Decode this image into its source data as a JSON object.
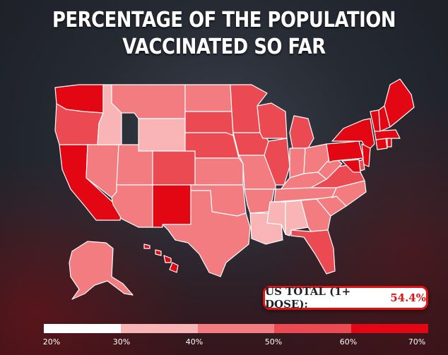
{
  "title": {
    "line1": "PERCENTAGE OF THE POPULATION",
    "line2": "VACCINATED SO FAR"
  },
  "total": {
    "label": "US TOTAL (1+ DOSE):",
    "value": "54.4%"
  },
  "legend": {
    "ticks": [
      "20%",
      "30%",
      "40%",
      "50%",
      "60%",
      "70%"
    ],
    "bins": [
      {
        "range": "20-30",
        "color": "#ffffff"
      },
      {
        "range": "30-40",
        "color": "#f9b4b6"
      },
      {
        "range": "40-50",
        "color": "#f27c80"
      },
      {
        "range": "50-60",
        "color": "#ec4a52"
      },
      {
        "range": "60-70",
        "color": "#e30613"
      }
    ]
  },
  "states": [
    {
      "id": "WA",
      "bin": 4
    },
    {
      "id": "OR",
      "bin": 3
    },
    {
      "id": "CA",
      "bin": 4
    },
    {
      "id": "NV",
      "bin": 2
    },
    {
      "id": "ID",
      "bin": 1
    },
    {
      "id": "MT",
      "bin": 2
    },
    {
      "id": "WY",
      "bin": 1
    },
    {
      "id": "UT",
      "bin": 2
    },
    {
      "id": "AZ",
      "bin": 2
    },
    {
      "id": "CO",
      "bin": 3
    },
    {
      "id": "NM",
      "bin": 4
    },
    {
      "id": "ND",
      "bin": 2
    },
    {
      "id": "SD",
      "bin": 3
    },
    {
      "id": "NE",
      "bin": 3
    },
    {
      "id": "KS",
      "bin": 2
    },
    {
      "id": "OK",
      "bin": 2
    },
    {
      "id": "TX",
      "bin": 2
    },
    {
      "id": "MN",
      "bin": 3
    },
    {
      "id": "IA",
      "bin": 3
    },
    {
      "id": "MO",
      "bin": 2
    },
    {
      "id": "AR",
      "bin": 2
    },
    {
      "id": "LA",
      "bin": 1
    },
    {
      "id": "WI",
      "bin": 3
    },
    {
      "id": "IL",
      "bin": 3
    },
    {
      "id": "MI",
      "bin": 3
    },
    {
      "id": "IN",
      "bin": 2
    },
    {
      "id": "OH",
      "bin": 2
    },
    {
      "id": "KY",
      "bin": 2
    },
    {
      "id": "TN",
      "bin": 2
    },
    {
      "id": "MS",
      "bin": 1
    },
    {
      "id": "AL",
      "bin": 1
    },
    {
      "id": "GA",
      "bin": 2
    },
    {
      "id": "FL",
      "bin": 3
    },
    {
      "id": "SC",
      "bin": 2
    },
    {
      "id": "NC",
      "bin": 2
    },
    {
      "id": "VA",
      "bin": 3
    },
    {
      "id": "WV",
      "bin": 2
    },
    {
      "id": "PA",
      "bin": 4
    },
    {
      "id": "NY",
      "bin": 4
    },
    {
      "id": "NJ",
      "bin": 4
    },
    {
      "id": "DE",
      "bin": 3
    },
    {
      "id": "MD",
      "bin": 4
    },
    {
      "id": "CT",
      "bin": 4
    },
    {
      "id": "RI",
      "bin": 4
    },
    {
      "id": "MA",
      "bin": 4
    },
    {
      "id": "VT",
      "bin": 4
    },
    {
      "id": "NH",
      "bin": 4
    },
    {
      "id": "ME",
      "bin": 4
    },
    {
      "id": "AK",
      "bin": 2
    },
    {
      "id": "HI",
      "bin": 4
    }
  ]
}
